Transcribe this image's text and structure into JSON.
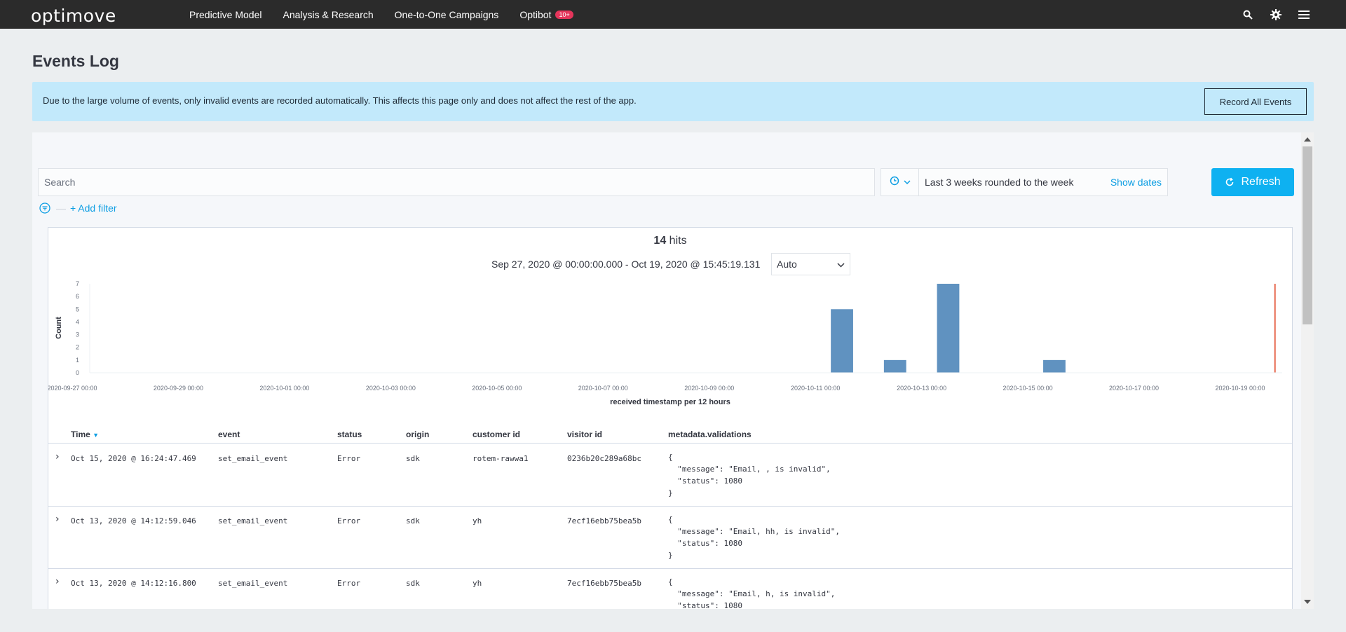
{
  "app": {
    "logo": "optimove",
    "nav": [
      {
        "label": "Predictive Model"
      },
      {
        "label": "Analysis & Research"
      },
      {
        "label": "One-to-One Campaigns"
      },
      {
        "label": "Optibot",
        "badge": "10+"
      }
    ],
    "icons": [
      "search-icon",
      "gear-icon",
      "menu-icon"
    ]
  },
  "page": {
    "title": "Events Log",
    "notice": "Due to the large volume of events, only invalid events are recorded automatically. This affects this page only and does not affect the rest of the app.",
    "record_button": "Record All Events"
  },
  "query": {
    "search_placeholder": "Search",
    "time_range": "Last 3 weeks rounded to the week",
    "show_dates": "Show dates",
    "refresh": "Refresh",
    "add_filter": "+ Add filter"
  },
  "results": {
    "hits_count": "14",
    "hits_label": "hits",
    "date_range": "Sep 27, 2020 @ 00:00:00.000 - Oct 19, 2020 @ 15:45:19.131",
    "interval": "Auto"
  },
  "chart_data": {
    "type": "bar",
    "xlabel": "received timestamp per 12 hours",
    "ylabel": "Count",
    "ylim": [
      0,
      7
    ],
    "yticks": [
      "0",
      "1",
      "2",
      "3",
      "4",
      "5",
      "6",
      "7"
    ],
    "xticks": [
      "2020-09-27 00:00",
      "2020-09-29 00:00",
      "2020-10-01 00:00",
      "2020-10-03 00:00",
      "2020-10-05 00:00",
      "2020-10-07 00:00",
      "2020-10-09 00:00",
      "2020-10-11 00:00",
      "2020-10-13 00:00",
      "2020-10-15 00:00",
      "2020-10-17 00:00",
      "2020-10-19 00:00"
    ],
    "bars": [
      {
        "x": "2020-10-11 12:00",
        "value": 5
      },
      {
        "x": "2020-10-12 12:00",
        "value": 1
      },
      {
        "x": "2020-10-13 12:00",
        "value": 7
      },
      {
        "x": "2020-10-15 12:00",
        "value": 1
      }
    ],
    "now_marker": "2020-10-19 15:45",
    "bar_color": "#6092c0",
    "marker_color": "#e7664c"
  },
  "table": {
    "columns": [
      "Time",
      "event",
      "status",
      "origin",
      "customer id",
      "visitor id",
      "metadata.validations"
    ],
    "rows": [
      {
        "time": "Oct 15, 2020 @ 16:24:47.469",
        "event": "set_email_event",
        "status": "Error",
        "origin": "sdk",
        "customer_id": "rotem-rawwa1",
        "visitor_id": "0236b20c289a68bc",
        "json_open": "{",
        "message": "  \"message\": \"Email, , is invalid\",",
        "status_code": "  \"status\": 1080",
        "json_close": "}"
      },
      {
        "time": "Oct 13, 2020 @ 14:12:59.046",
        "event": "set_email_event",
        "status": "Error",
        "origin": "sdk",
        "customer_id": "yh",
        "visitor_id": "7ecf16ebb75bea5b",
        "json_open": "{",
        "message": "  \"message\": \"Email, hh, is invalid\",",
        "status_code": "  \"status\": 1080",
        "json_close": "}"
      },
      {
        "time": "Oct 13, 2020 @ 14:12:16.800",
        "event": "set_email_event",
        "status": "Error",
        "origin": "sdk",
        "customer_id": "yh",
        "visitor_id": "7ecf16ebb75bea5b",
        "json_open": "{",
        "message": "  \"message\": \"Email, h, is invalid\",",
        "status_code": "  \"status\": 1080",
        "json_close": "}"
      }
    ]
  }
}
